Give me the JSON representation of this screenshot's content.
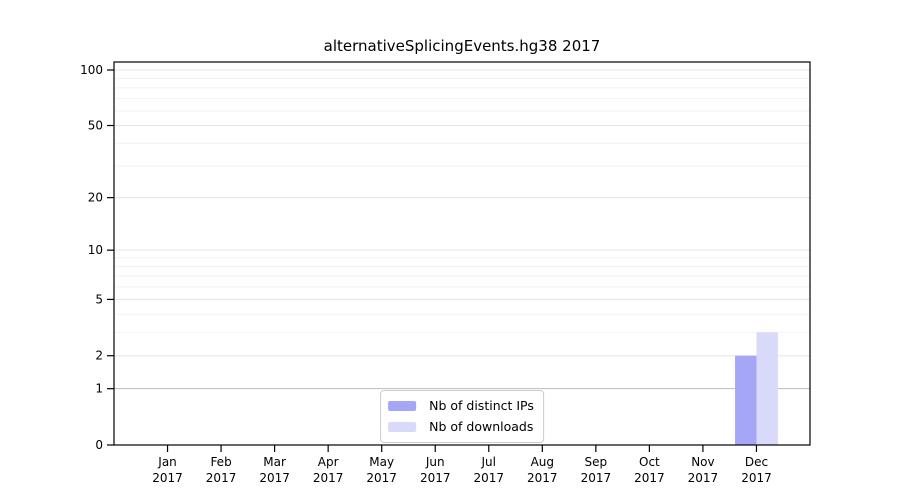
{
  "chart_data": {
    "type": "bar",
    "title": "alternativeSplicingEvents.hg38 2017",
    "yscale": "log1p",
    "ylim": [
      0,
      100
    ],
    "grid": true,
    "legend_position": "lower center",
    "categories": [
      "Jan",
      "Feb",
      "Mar",
      "Apr",
      "May",
      "Jun",
      "Jul",
      "Aug",
      "Sep",
      "Oct",
      "Nov",
      "Dec"
    ],
    "year_label": "2017",
    "series": [
      {
        "name": "Nb of distinct IPs",
        "color": "#a6a6f7",
        "values": [
          0,
          0,
          0,
          0,
          0,
          0,
          0,
          0,
          0,
          0,
          0,
          2
        ]
      },
      {
        "name": "Nb of downloads",
        "color": "#d9d9fa",
        "values": [
          0,
          0,
          0,
          0,
          0,
          0,
          0,
          0,
          0,
          0,
          0,
          3
        ]
      }
    ],
    "yticks": [
      0,
      1,
      2,
      5,
      10,
      20,
      50,
      100
    ],
    "minor_gridlines": [
      3,
      4,
      6,
      7,
      8,
      9,
      30,
      40,
      60,
      70,
      80,
      90
    ]
  },
  "colors": {
    "grid_minor": "#f2f2f2",
    "grid_major": "#e5e5e5",
    "grid_emphasis": "#bcbcbc",
    "axis": "#000000",
    "background": "#ffffff"
  }
}
